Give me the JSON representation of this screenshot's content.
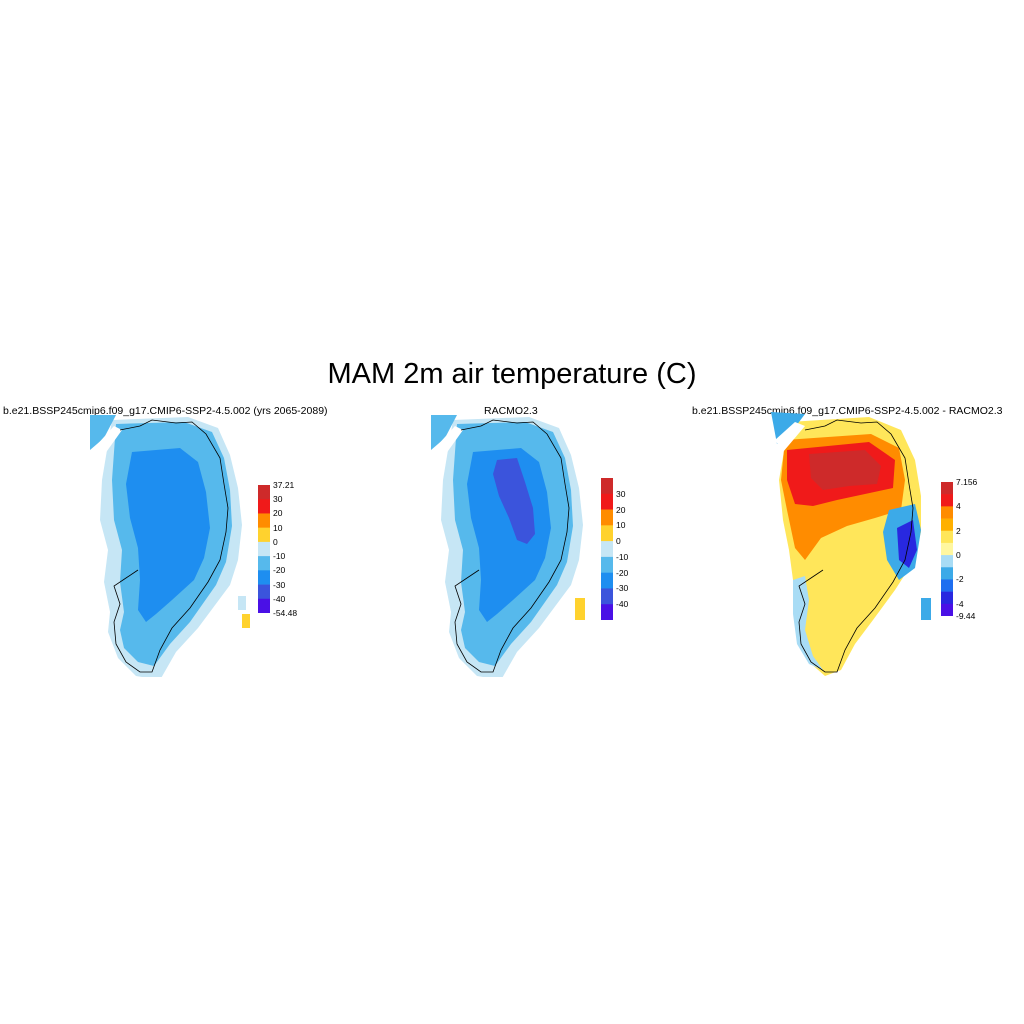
{
  "figure": {
    "title": "MAM 2m air temperature (C)"
  },
  "panels": [
    {
      "title": "b.e21.BSSP245cmip6.f09_g17.CMIP6-SSP2-4.5.002 (yrs 2065-2089)",
      "kind": "model",
      "colorbar": {
        "colors": [
          "#ce2a2a",
          "#f01a1a",
          "#ff8c00",
          "#ffd22e",
          "#c6e6f5",
          "#56b9ec",
          "#1e8ef0",
          "#3b54dc",
          "#4a10e6"
        ],
        "labels": [
          "37.21",
          "30",
          "20",
          "10",
          "0",
          "-10",
          "-20",
          "-30",
          "-40",
          "-54.48"
        ]
      }
    },
    {
      "title": "RACMO2.3",
      "kind": "obs",
      "colorbar": {
        "colors": [
          "#ce2a2a",
          "#f01a1a",
          "#ff8c00",
          "#ffd22e",
          "#c6e6f5",
          "#56b9ec",
          "#1e8ef0",
          "#3b54dc",
          "#4a10e6"
        ],
        "labels": [
          "30",
          "20",
          "10",
          "0",
          "-10",
          "-20",
          "-30",
          "-40"
        ]
      }
    },
    {
      "title": "b.e21.BSSP245cmip6.f09_g17.CMIP6-SSP2-4.5.002 - RACMO2.3",
      "kind": "diff",
      "colorbar": {
        "colors": [
          "#ce2a2a",
          "#f01a1a",
          "#ff8c00",
          "#ffb000",
          "#ffe65a",
          "#fff7a0",
          "#a8dcf5",
          "#3caae8",
          "#1e6ef0",
          "#2828e0",
          "#4a10e6"
        ],
        "labels": [
          "7.156",
          "4",
          "2",
          "0",
          "-2",
          "-4",
          "-9.44"
        ]
      }
    }
  ]
}
